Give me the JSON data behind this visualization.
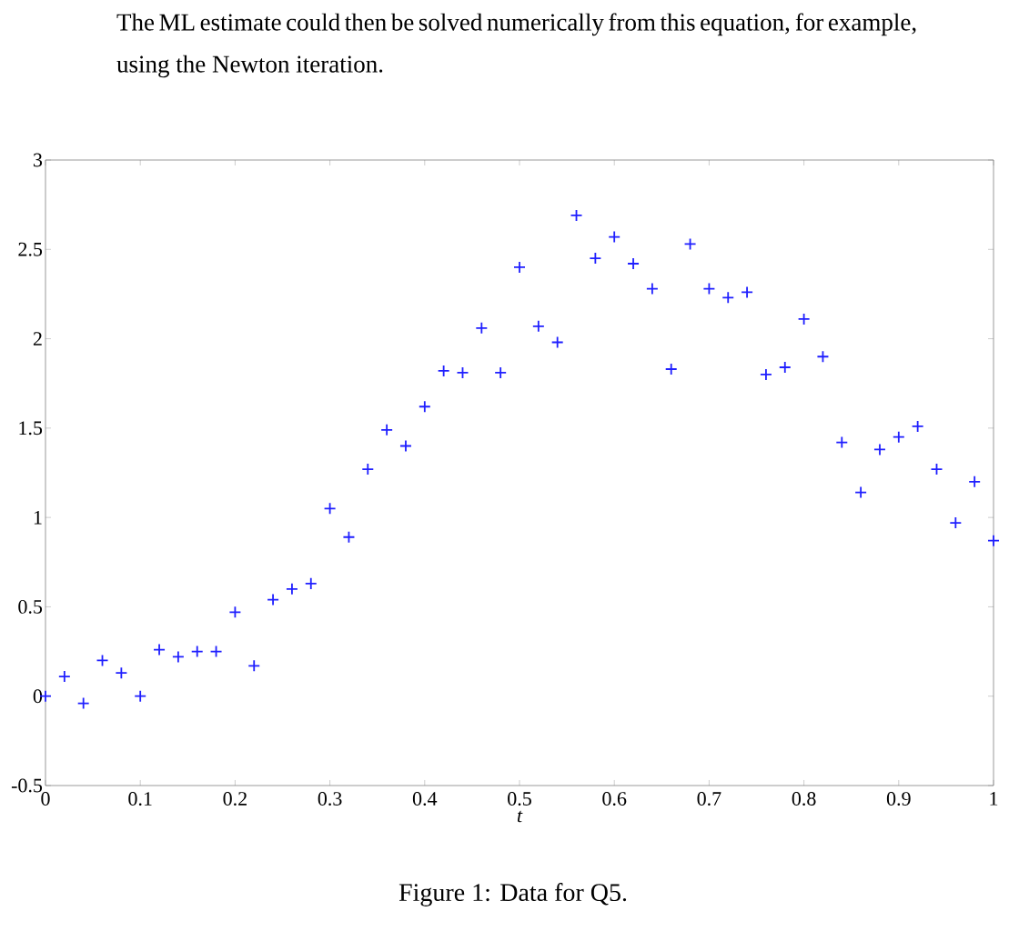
{
  "chart_data": {
    "type": "scatter",
    "xlabel": "t",
    "annotations": [
      "The ML estimate could then be solved numerically from this equation, for example, using the Newton iteration.",
      "Figure 1: Data for Q5."
    ],
    "x": [
      0,
      0.02,
      0.04,
      0.06,
      0.08,
      0.1,
      0.12,
      0.14,
      0.16,
      0.18,
      0.2,
      0.22,
      0.24,
      0.26,
      0.28,
      0.3,
      0.32,
      0.34,
      0.36,
      0.38,
      0.4,
      0.42,
      0.44,
      0.46,
      0.48,
      0.5,
      0.52,
      0.54,
      0.56,
      0.58,
      0.6,
      0.62,
      0.64,
      0.66,
      0.68,
      0.7,
      0.72,
      0.74,
      0.76,
      0.78,
      0.8,
      0.82,
      0.84,
      0.86,
      0.88,
      0.9,
      0.92,
      0.94,
      0.96,
      0.98,
      1
    ],
    "values": [
      0,
      0.11,
      -0.04,
      0.2,
      0.13,
      0,
      0.26,
      0.22,
      0.25,
      0.25,
      0.47,
      0.17,
      0.54,
      0.6,
      0.63,
      1.05,
      0.89,
      1.27,
      1.49,
      1.4,
      1.62,
      1.82,
      1.81,
      2.06,
      1.81,
      2.4,
      2.07,
      1.98,
      2.69,
      2.45,
      2.57,
      2.42,
      2.28,
      1.83,
      2.53,
      2.28,
      2.23,
      2.26,
      1.8,
      1.84,
      2.11,
      1.9,
      1.42,
      1.14,
      1.38,
      1.45,
      1.51,
      1.27,
      0.97,
      1.2,
      0.87
    ],
    "color": "#1f1fff",
    "marker": "cross",
    "xlim": [
      0,
      1
    ],
    "ylim": [
      -0.5,
      3
    ],
    "xticks": [
      0,
      0.1,
      0.2,
      0.3,
      0.4,
      0.5,
      0.6,
      0.7,
      0.8,
      0.9,
      1
    ],
    "yticks": [
      -0.5,
      0,
      0.5,
      1,
      1.5,
      2,
      2.5,
      3
    ],
    "grid": false
  }
}
